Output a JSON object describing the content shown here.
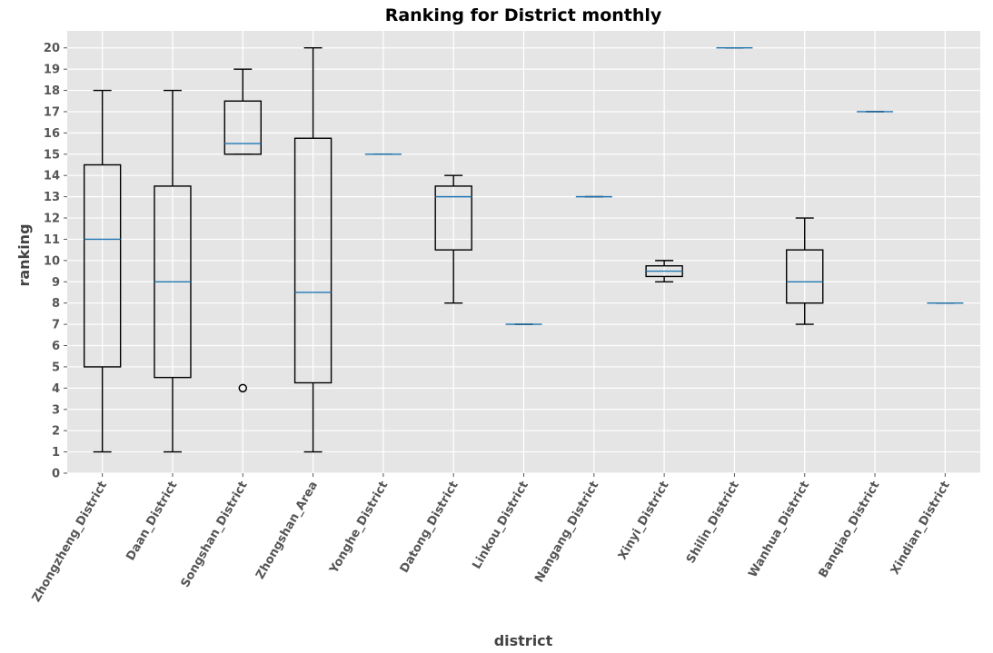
{
  "colors": {
    "plot_background": "#e5e5e5",
    "box": "#000000",
    "median": "#1f77b4",
    "grid": "#ffffff",
    "tick_text": "#555555"
  },
  "chart_data": {
    "type": "box",
    "title": "Ranking for District monthly",
    "xlabel": "district",
    "ylabel": "ranking",
    "ylim": [
      0,
      20.8
    ],
    "yticks": [
      0,
      1,
      2,
      3,
      4,
      5,
      6,
      7,
      8,
      9,
      10,
      11,
      12,
      13,
      14,
      15,
      16,
      17,
      18,
      19,
      20
    ],
    "grid": true,
    "categories": [
      "Zhongzheng_District",
      "Daan_District",
      "Songshan_District",
      "Zhongshan_Area",
      "Yonghe_District",
      "Datong_District",
      "Linkou_District",
      "Nangang_District",
      "Xinyi_District",
      "Shilin_District",
      "Wanhua_District",
      "Banqiao_District",
      "Xindian_District"
    ],
    "boxes": [
      {
        "min": 1,
        "q1": 5,
        "median": 11,
        "q3": 14.5,
        "max": 18,
        "outliers": []
      },
      {
        "min": 1,
        "q1": 4.5,
        "median": 9,
        "q3": 13.5,
        "max": 18,
        "outliers": []
      },
      {
        "min": 15,
        "q1": 15,
        "median": 15.5,
        "q3": 17.5,
        "max": 19,
        "outliers": [
          4
        ]
      },
      {
        "min": 1,
        "q1": 4.25,
        "median": 8.5,
        "q3": 15.75,
        "max": 20,
        "outliers": []
      },
      {
        "min": 15,
        "q1": 15,
        "median": 15,
        "q3": 15,
        "max": 15,
        "outliers": []
      },
      {
        "min": 8,
        "q1": 10.5,
        "median": 13,
        "q3": 13.5,
        "max": 14,
        "outliers": []
      },
      {
        "min": 7,
        "q1": 7,
        "median": 7,
        "q3": 7,
        "max": 7,
        "outliers": []
      },
      {
        "min": 13,
        "q1": 13,
        "median": 13,
        "q3": 13,
        "max": 13,
        "outliers": []
      },
      {
        "min": 9,
        "q1": 9.25,
        "median": 9.5,
        "q3": 9.75,
        "max": 10,
        "outliers": []
      },
      {
        "min": 20,
        "q1": 20,
        "median": 20,
        "q3": 20,
        "max": 20,
        "outliers": []
      },
      {
        "min": 7,
        "q1": 8,
        "median": 9,
        "q3": 10.5,
        "max": 12,
        "outliers": []
      },
      {
        "min": 17,
        "q1": 17,
        "median": 17,
        "q3": 17,
        "max": 17,
        "outliers": []
      },
      {
        "min": 8,
        "q1": 8,
        "median": 8,
        "q3": 8,
        "max": 8,
        "outliers": []
      }
    ]
  }
}
